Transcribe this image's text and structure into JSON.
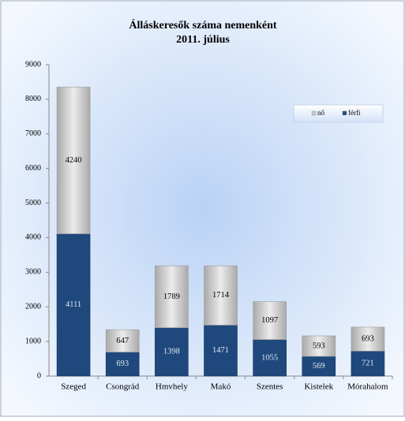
{
  "chart_data": {
    "type": "stacked_bar",
    "title": "Álláskeresők száma nemenként",
    "subtitle": "2011. július",
    "categories": [
      "Szeged",
      "Csongrád",
      "Hmvhely",
      "Makó",
      "Szentes",
      "Kistelek",
      "Mórahalom"
    ],
    "series": [
      {
        "name": "férfi",
        "color": "#1f497d",
        "values": [
          4111,
          693,
          1398,
          1471,
          1055,
          569,
          721
        ]
      },
      {
        "name": "nő",
        "color": "#c8c8c8",
        "values": [
          4240,
          647,
          1789,
          1714,
          1097,
          593,
          693
        ]
      }
    ],
    "ylim": [
      0,
      9000
    ],
    "yticks": [
      0,
      1000,
      2000,
      3000,
      4000,
      5000,
      6000,
      7000,
      8000,
      9000
    ],
    "legend": "top-right"
  }
}
